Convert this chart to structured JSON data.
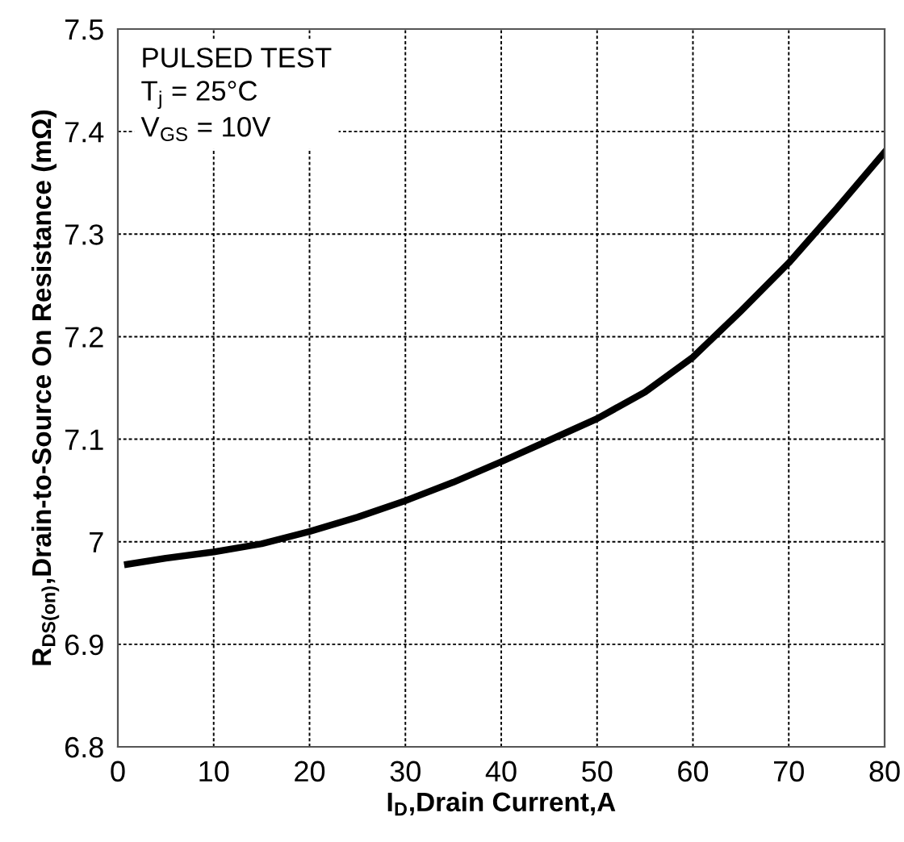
{
  "chart_data": {
    "type": "line",
    "xlabel": "I$_{D}$,Drain Current,A",
    "ylabel": "R$_{DS(on)}$,Drain-to-Source On Resistance (mΩ)",
    "annotations": [
      "PULSED TEST",
      "T$_{j}$ = 25°C",
      "V$_{GS}$ = 10V"
    ],
    "x": [
      1,
      5,
      10,
      15,
      20,
      25,
      30,
      35,
      40,
      45,
      50,
      55,
      60,
      65,
      70,
      75,
      80
    ],
    "series": [
      {
        "color": "#000000",
        "values": [
          6.978,
          6.984,
          6.99,
          6.998,
          7.01,
          7.024,
          7.04,
          7.058,
          7.078,
          7.099,
          7.12,
          7.146,
          7.18,
          7.225,
          7.272,
          7.325,
          7.38
        ]
      }
    ],
    "xlim": [
      0,
      80
    ],
    "xticks": [
      0,
      10,
      20,
      30,
      40,
      50,
      60,
      70,
      80
    ],
    "ylim": [
      6.8,
      7.5
    ],
    "yticks": [
      6.8,
      6.9,
      7,
      7.1,
      7.2,
      7.3,
      7.4,
      7.5
    ],
    "grid": true,
    "legend": false,
    "marker": "none",
    "line_style": "solid"
  }
}
